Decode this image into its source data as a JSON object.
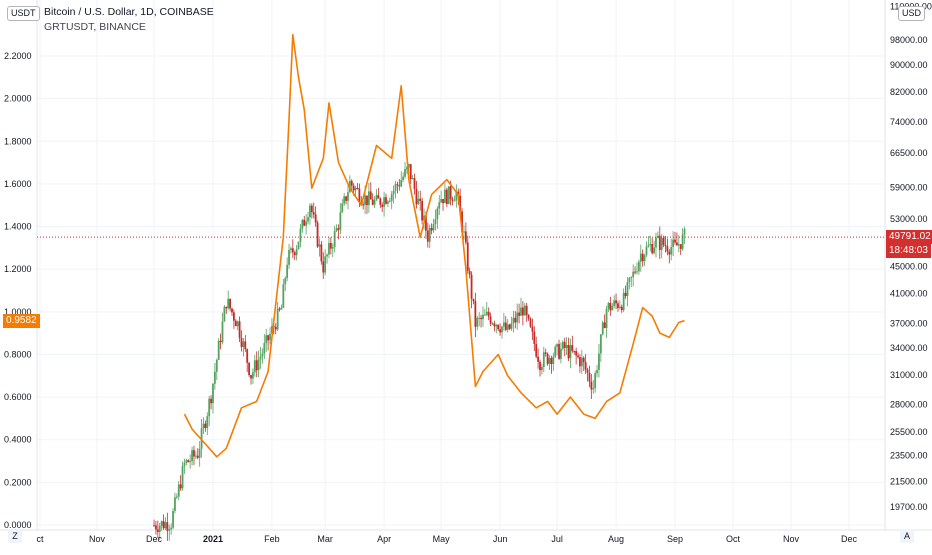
{
  "legend": {
    "main_title": "Bitcoin / U.S. Dollar, 1D, COINBASE",
    "compare_title": "GRTUSDT, BINANCE"
  },
  "left_scale": {
    "currency": "USDT"
  },
  "right_scale": {
    "currency": "USD"
  },
  "corner_left": "Z",
  "corner_right": "A",
  "colors": {
    "up": "#53a25f",
    "down": "#c62828",
    "compare": "#f57c00",
    "last_price": "#d32f2f",
    "axis_text": "#131722"
  },
  "last_price": {
    "value": "49791.02",
    "countdown": "18:48:03"
  },
  "compare_last": "0.9582",
  "chart_data": {
    "type": "line",
    "x_axis": {
      "ticks": [
        "ct",
        "Nov",
        "Dec",
        "2021",
        "Feb",
        "Mar",
        "Apr",
        "May",
        "Jun",
        "Jul",
        "Aug",
        "Sep",
        "Oct",
        "Nov",
        "Dec"
      ]
    },
    "left_axis": {
      "label": "GRTUSDT",
      "ticks": [
        "0.0000",
        "0.2000",
        "0.4000",
        "0.6000",
        "0.8000",
        "1.0000",
        "1.2000",
        "1.4000",
        "1.6000",
        "1.8000",
        "2.0000",
        "2.2000"
      ],
      "range": [
        0.0,
        2.2
      ]
    },
    "right_axis": {
      "label": "BTCUSD",
      "scale": "log",
      "ticks": [
        "19700.00",
        "21500.00",
        "23500.00",
        "25500.00",
        "28000.00",
        "31000.00",
        "34000.00",
        "37000.00",
        "41000.00",
        "45000.00",
        "53000.00",
        "59000.00",
        "66500.00",
        "74000.00",
        "82000.00",
        "90000.00",
        "98000.00",
        "110000.00"
      ]
    },
    "series": [
      {
        "name": "BTCUSD",
        "style": "candles",
        "points": [
          [
            "Dec 01",
            18500
          ],
          [
            "Dec 10",
            18700
          ],
          [
            "Dec 17",
            22800
          ],
          [
            "Dec 24",
            23700
          ],
          [
            "Dec 31",
            29000
          ],
          [
            "Jan 08",
            40000
          ],
          [
            "Jan 14",
            37000
          ],
          [
            "Jan 21",
            31000
          ],
          [
            "Jan 28",
            34000
          ],
          [
            "Feb 06",
            39000
          ],
          [
            "Feb 09",
            46000
          ],
          [
            "Feb 14",
            48500
          ],
          [
            "Feb 21",
            56000
          ],
          [
            "Feb 28",
            45000
          ],
          [
            "Mar 07",
            51000
          ],
          [
            "Mar 14",
            60000
          ],
          [
            "Mar 21",
            57000
          ],
          [
            "Mar 28",
            56000
          ],
          [
            "Apr 05",
            58000
          ],
          [
            "Apr 14",
            63000
          ],
          [
            "Apr 24",
            50000
          ],
          [
            "Apr 30",
            57000
          ],
          [
            "May 09",
            58000
          ],
          [
            "May 13",
            50000
          ],
          [
            "May 19",
            37000
          ],
          [
            "May 26",
            38000
          ],
          [
            "Jun 05",
            36000
          ],
          [
            "Jun 13",
            39000
          ],
          [
            "Jun 22",
            32500
          ],
          [
            "Jul 05",
            34000
          ],
          [
            "Jul 14",
            32500
          ],
          [
            "Jul 20",
            29800
          ],
          [
            "Jul 27",
            39000
          ],
          [
            "Aug 05",
            40000
          ],
          [
            "Aug 14",
            47000
          ],
          [
            "Aug 22",
            49000
          ],
          [
            "Sep 01",
            48000
          ],
          [
            "Sep 06",
            49791
          ]
        ]
      },
      {
        "name": "GRTUSDT",
        "style": "line",
        "points": [
          [
            "Dec 17",
            0.52
          ],
          [
            "Dec 21",
            0.45
          ],
          [
            "Dec 28",
            0.38
          ],
          [
            "Jan 03",
            0.32
          ],
          [
            "Jan 08",
            0.36
          ],
          [
            "Jan 16",
            0.55
          ],
          [
            "Jan 24",
            0.58
          ],
          [
            "Jan 30",
            0.72
          ],
          [
            "Feb 07",
            1.35
          ],
          [
            "Feb 10",
            1.9
          ],
          [
            "Feb 12",
            2.3
          ],
          [
            "Feb 15",
            2.1
          ],
          [
            "Feb 18",
            1.95
          ],
          [
            "Feb 22",
            1.58
          ],
          [
            "Feb 28",
            1.72
          ],
          [
            "Mar 03",
            1.98
          ],
          [
            "Mar 08",
            1.7
          ],
          [
            "Mar 14",
            1.58
          ],
          [
            "Mar 20",
            1.5
          ],
          [
            "Mar 28",
            1.78
          ],
          [
            "Apr 05",
            1.72
          ],
          [
            "Apr 10",
            2.06
          ],
          [
            "Apr 14",
            1.62
          ],
          [
            "Apr 20",
            1.35
          ],
          [
            "Apr 26",
            1.55
          ],
          [
            "May 04",
            1.62
          ],
          [
            "May 10",
            1.55
          ],
          [
            "May 14",
            1.2
          ],
          [
            "May 19",
            0.65
          ],
          [
            "May 23",
            0.72
          ],
          [
            "May 31",
            0.8
          ],
          [
            "Jun 05",
            0.7
          ],
          [
            "Jun 12",
            0.62
          ],
          [
            "Jun 20",
            0.55
          ],
          [
            "Jun 26",
            0.58
          ],
          [
            "Jul 01",
            0.52
          ],
          [
            "Jul 08",
            0.6
          ],
          [
            "Jul 15",
            0.52
          ],
          [
            "Jul 21",
            0.5
          ],
          [
            "Jul 27",
            0.58
          ],
          [
            "Aug 03",
            0.62
          ],
          [
            "Aug 10",
            0.85
          ],
          [
            "Aug 15",
            1.02
          ],
          [
            "Aug 20",
            0.98
          ],
          [
            "Aug 24",
            0.9
          ],
          [
            "Aug 29",
            0.88
          ],
          [
            "Sep 03",
            0.95
          ],
          [
            "Sep 06",
            0.9582
          ]
        ]
      }
    ]
  }
}
